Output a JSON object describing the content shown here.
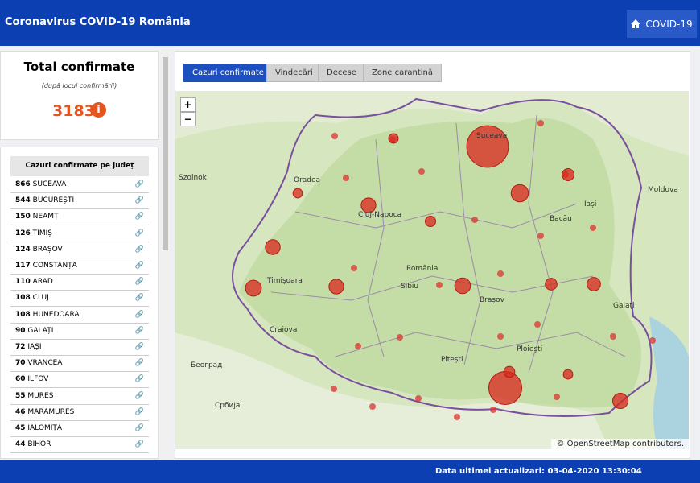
{
  "header": {
    "title": "Coronavirus COVID-19 România",
    "button": "COVID-19"
  },
  "summary": {
    "title": "Total confirmate",
    "subtitle": "(după locul confirmării)",
    "total": "3183"
  },
  "table": {
    "header": "Cazuri confirmate pe județ",
    "rows": [
      {
        "count": 866,
        "name": "SUCEAVA"
      },
      {
        "count": 544,
        "name": "BUCUREȘTI"
      },
      {
        "count": 150,
        "name": "NEAMȚ"
      },
      {
        "count": 126,
        "name": "TIMIȘ"
      },
      {
        "count": 124,
        "name": "BRAȘOV"
      },
      {
        "count": 117,
        "name": "CONSTANȚA"
      },
      {
        "count": 110,
        "name": "ARAD"
      },
      {
        "count": 108,
        "name": "CLUJ"
      },
      {
        "count": 108,
        "name": "HUNEDOARA"
      },
      {
        "count": 90,
        "name": "GALAȚI"
      },
      {
        "count": 72,
        "name": "IAȘI"
      },
      {
        "count": 70,
        "name": "VRANCEA"
      },
      {
        "count": 60,
        "name": "ILFOV"
      },
      {
        "count": 55,
        "name": "MUREȘ"
      },
      {
        "count": 46,
        "name": "MARAMUREȘ"
      },
      {
        "count": 45,
        "name": "IALOMIȚA"
      },
      {
        "count": 44,
        "name": "BIHOR"
      }
    ]
  },
  "tabs": [
    "Cazuri confirmate",
    "Vindecări",
    "Decese",
    "Zone carantină"
  ],
  "map": {
    "zoom_in": "+",
    "zoom_out": "−",
    "labels": [
      "Cluj-Napoca",
      "Timișoara",
      "Brașov",
      "Iași",
      "Ploiești",
      "Galați",
      "Moldova",
      "Sibiu",
      "Pitești",
      "Bacău",
      "România",
      "Oradea",
      "Szolnok",
      "Београд",
      "Србија",
      "Craiova",
      "Suceava"
    ],
    "attribution": "© OpenStreetMap contributors."
  },
  "footer": {
    "text": "Data ultimei actualizari: 03-04-2020 13:30:04"
  }
}
